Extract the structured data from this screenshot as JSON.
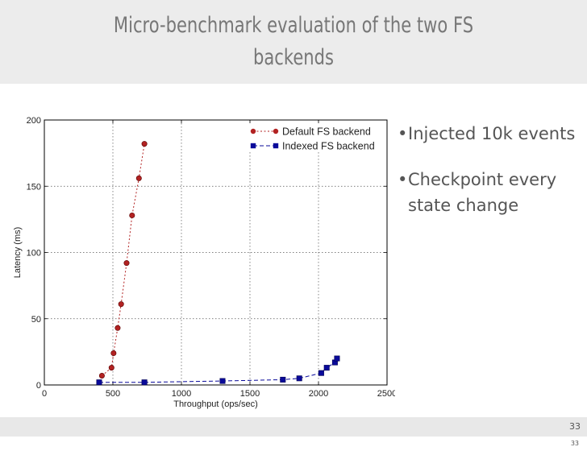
{
  "slide": {
    "title_line1": "Micro-benchmark evaluation of the two FS",
    "title_line2": "backends",
    "bullets": [
      "Injected 10k events",
      "Checkpoint every state change"
    ],
    "page_number": "33",
    "page_number_small": "33"
  },
  "chart_data": {
    "type": "line",
    "title": "",
    "xlabel": "Throughput (ops/sec)",
    "ylabel": "Latency (ms)",
    "xlim": [
      0,
      2500
    ],
    "ylim": [
      0,
      200
    ],
    "xticks": [
      "0",
      "500",
      "1000",
      "1500",
      "2000",
      "2500"
    ],
    "yticks": [
      "0",
      "50",
      "100",
      "150",
      "200"
    ],
    "grid": true,
    "legend_position": "top-right",
    "series": [
      {
        "name": "Default FS backend",
        "color": "#b22222",
        "marker": "circle",
        "line_style": "dotted",
        "x": [
          420,
          490,
          505,
          535,
          560,
          600,
          640,
          690,
          730
        ],
        "y": [
          7,
          13,
          24,
          43,
          61,
          92,
          128,
          156,
          182
        ]
      },
      {
        "name": "Indexed FS backend",
        "color": "#0a0a9a",
        "marker": "square",
        "line_style": "dashed",
        "x": [
          400,
          730,
          1300,
          1740,
          1860,
          2020,
          2060,
          2120,
          2135
        ],
        "y": [
          2,
          2,
          3,
          4,
          5,
          9,
          13,
          17,
          20
        ]
      }
    ]
  }
}
